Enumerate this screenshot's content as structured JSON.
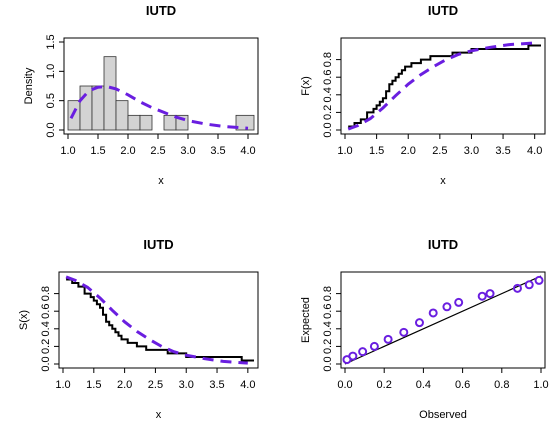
{
  "colors": {
    "fitted_line": "#6a1ee0",
    "bars_fill": "#d3d3d3",
    "empirical_line": "#000000",
    "points": "#6a1ee0"
  },
  "chart_data": [
    {
      "type": "histogram",
      "title": "IUTD",
      "xlabel": "x",
      "ylabel": "Density",
      "xlim": [
        1.0,
        4.1
      ],
      "ylim": [
        0,
        1.5
      ],
      "xticks": [
        "1.0",
        "1.5",
        "2.0",
        "2.5",
        "3.0",
        "3.5",
        "4.0"
      ],
      "yticks": [
        "0.0",
        "0.5",
        "1.0",
        "1.5"
      ],
      "bins": [
        {
          "x0": 1.0,
          "x1": 1.2,
          "density": 0.5
        },
        {
          "x0": 1.2,
          "x1": 1.4,
          "density": 0.75
        },
        {
          "x0": 1.4,
          "x1": 1.6,
          "density": 0.75
        },
        {
          "x0": 1.6,
          "x1": 1.8,
          "density": 1.25
        },
        {
          "x0": 1.8,
          "x1": 2.0,
          "density": 0.5
        },
        {
          "x0": 2.0,
          "x1": 2.2,
          "density": 0.25
        },
        {
          "x0": 2.2,
          "x1": 2.4,
          "density": 0.25
        },
        {
          "x0": 2.6,
          "x1": 2.8,
          "density": 0.25
        },
        {
          "x0": 2.8,
          "x1": 3.0,
          "density": 0.25
        },
        {
          "x0": 3.8,
          "x1": 4.1,
          "density": 0.25
        }
      ],
      "fitted_density": {
        "x": [
          1.05,
          1.2,
          1.35,
          1.5,
          1.65,
          1.8,
          2.0,
          2.2,
          2.4,
          2.6,
          2.8,
          3.0,
          3.3,
          3.6,
          4.0
        ],
        "y": [
          0.2,
          0.5,
          0.67,
          0.73,
          0.74,
          0.7,
          0.6,
          0.48,
          0.38,
          0.3,
          0.22,
          0.16,
          0.1,
          0.06,
          0.03
        ]
      }
    },
    {
      "type": "step",
      "title": "IUTD",
      "xlabel": "x",
      "ylabel": "F(x)",
      "xlim": [
        1.0,
        4.1
      ],
      "ylim": [
        0,
        1.0
      ],
      "xticks": [
        "1.0",
        "1.5",
        "2.0",
        "2.5",
        "3.0",
        "3.5",
        "4.0"
      ],
      "yticks": [
        "0.0",
        "0.2",
        "0.4",
        "0.6",
        "0.8"
      ],
      "empirical": {
        "x": [
          1.05,
          1.15,
          1.25,
          1.35,
          1.45,
          1.5,
          1.55,
          1.6,
          1.65,
          1.7,
          1.75,
          1.8,
          1.85,
          1.9,
          1.95,
          2.05,
          2.2,
          2.35,
          2.5,
          2.7,
          2.85,
          3.0,
          3.9,
          4.1
        ],
        "y": [
          0.04,
          0.08,
          0.12,
          0.2,
          0.24,
          0.28,
          0.32,
          0.36,
          0.44,
          0.52,
          0.56,
          0.6,
          0.64,
          0.68,
          0.72,
          0.76,
          0.8,
          0.84,
          0.84,
          0.88,
          0.88,
          0.92,
          0.96,
          0.96
        ]
      },
      "fitted": {
        "x": [
          1.05,
          1.2,
          1.4,
          1.6,
          1.8,
          2.0,
          2.2,
          2.4,
          2.6,
          2.8,
          3.0,
          3.3,
          3.6,
          4.0
        ],
        "y": [
          0.01,
          0.05,
          0.13,
          0.25,
          0.39,
          0.52,
          0.63,
          0.72,
          0.8,
          0.86,
          0.9,
          0.94,
          0.97,
          0.99
        ]
      }
    },
    {
      "type": "step",
      "title": "IUTD",
      "xlabel": "x",
      "ylabel": "S(x)",
      "xlim": [
        1.0,
        4.1
      ],
      "ylim": [
        0,
        1.0
      ],
      "xticks": [
        "1.0",
        "1.5",
        "2.0",
        "2.5",
        "3.0",
        "3.5",
        "4.0"
      ],
      "yticks": [
        "0.0",
        "0.2",
        "0.4",
        "0.6",
        "0.8"
      ],
      "empirical": {
        "x": [
          1.05,
          1.15,
          1.25,
          1.35,
          1.45,
          1.5,
          1.55,
          1.6,
          1.65,
          1.7,
          1.75,
          1.8,
          1.85,
          1.9,
          1.95,
          2.05,
          2.2,
          2.35,
          2.5,
          2.7,
          2.85,
          3.0,
          3.9,
          4.1
        ],
        "y": [
          0.96,
          0.92,
          0.88,
          0.8,
          0.76,
          0.72,
          0.68,
          0.64,
          0.56,
          0.48,
          0.44,
          0.4,
          0.36,
          0.32,
          0.28,
          0.24,
          0.2,
          0.16,
          0.16,
          0.12,
          0.12,
          0.08,
          0.04,
          0.04
        ]
      },
      "fitted": {
        "x": [
          1.05,
          1.2,
          1.4,
          1.6,
          1.8,
          2.0,
          2.2,
          2.4,
          2.6,
          2.8,
          3.0,
          3.3,
          3.6,
          4.0
        ],
        "y": [
          0.99,
          0.95,
          0.87,
          0.75,
          0.61,
          0.48,
          0.37,
          0.28,
          0.2,
          0.14,
          0.1,
          0.06,
          0.03,
          0.01
        ]
      }
    },
    {
      "type": "scatter",
      "title": "IUTD",
      "xlabel": "Observed",
      "ylabel": "Expected",
      "xlim": [
        0,
        1.0
      ],
      "ylim": [
        0,
        1.0
      ],
      "xticks": [
        "0.0",
        "0.2",
        "0.4",
        "0.6",
        "0.8",
        "1.0"
      ],
      "yticks": [
        "0.0",
        "0.2",
        "0.4",
        "0.6",
        "0.8"
      ],
      "points": {
        "x": [
          0.01,
          0.04,
          0.09,
          0.15,
          0.22,
          0.3,
          0.38,
          0.45,
          0.52,
          0.58,
          0.7,
          0.74,
          0.88,
          0.94,
          0.99
        ],
        "y": [
          0.05,
          0.09,
          0.14,
          0.2,
          0.28,
          0.36,
          0.47,
          0.58,
          0.65,
          0.7,
          0.77,
          0.8,
          0.86,
          0.9,
          0.95
        ]
      },
      "reference_line": {
        "x": [
          0,
          1
        ],
        "y": [
          0,
          1
        ]
      }
    }
  ]
}
